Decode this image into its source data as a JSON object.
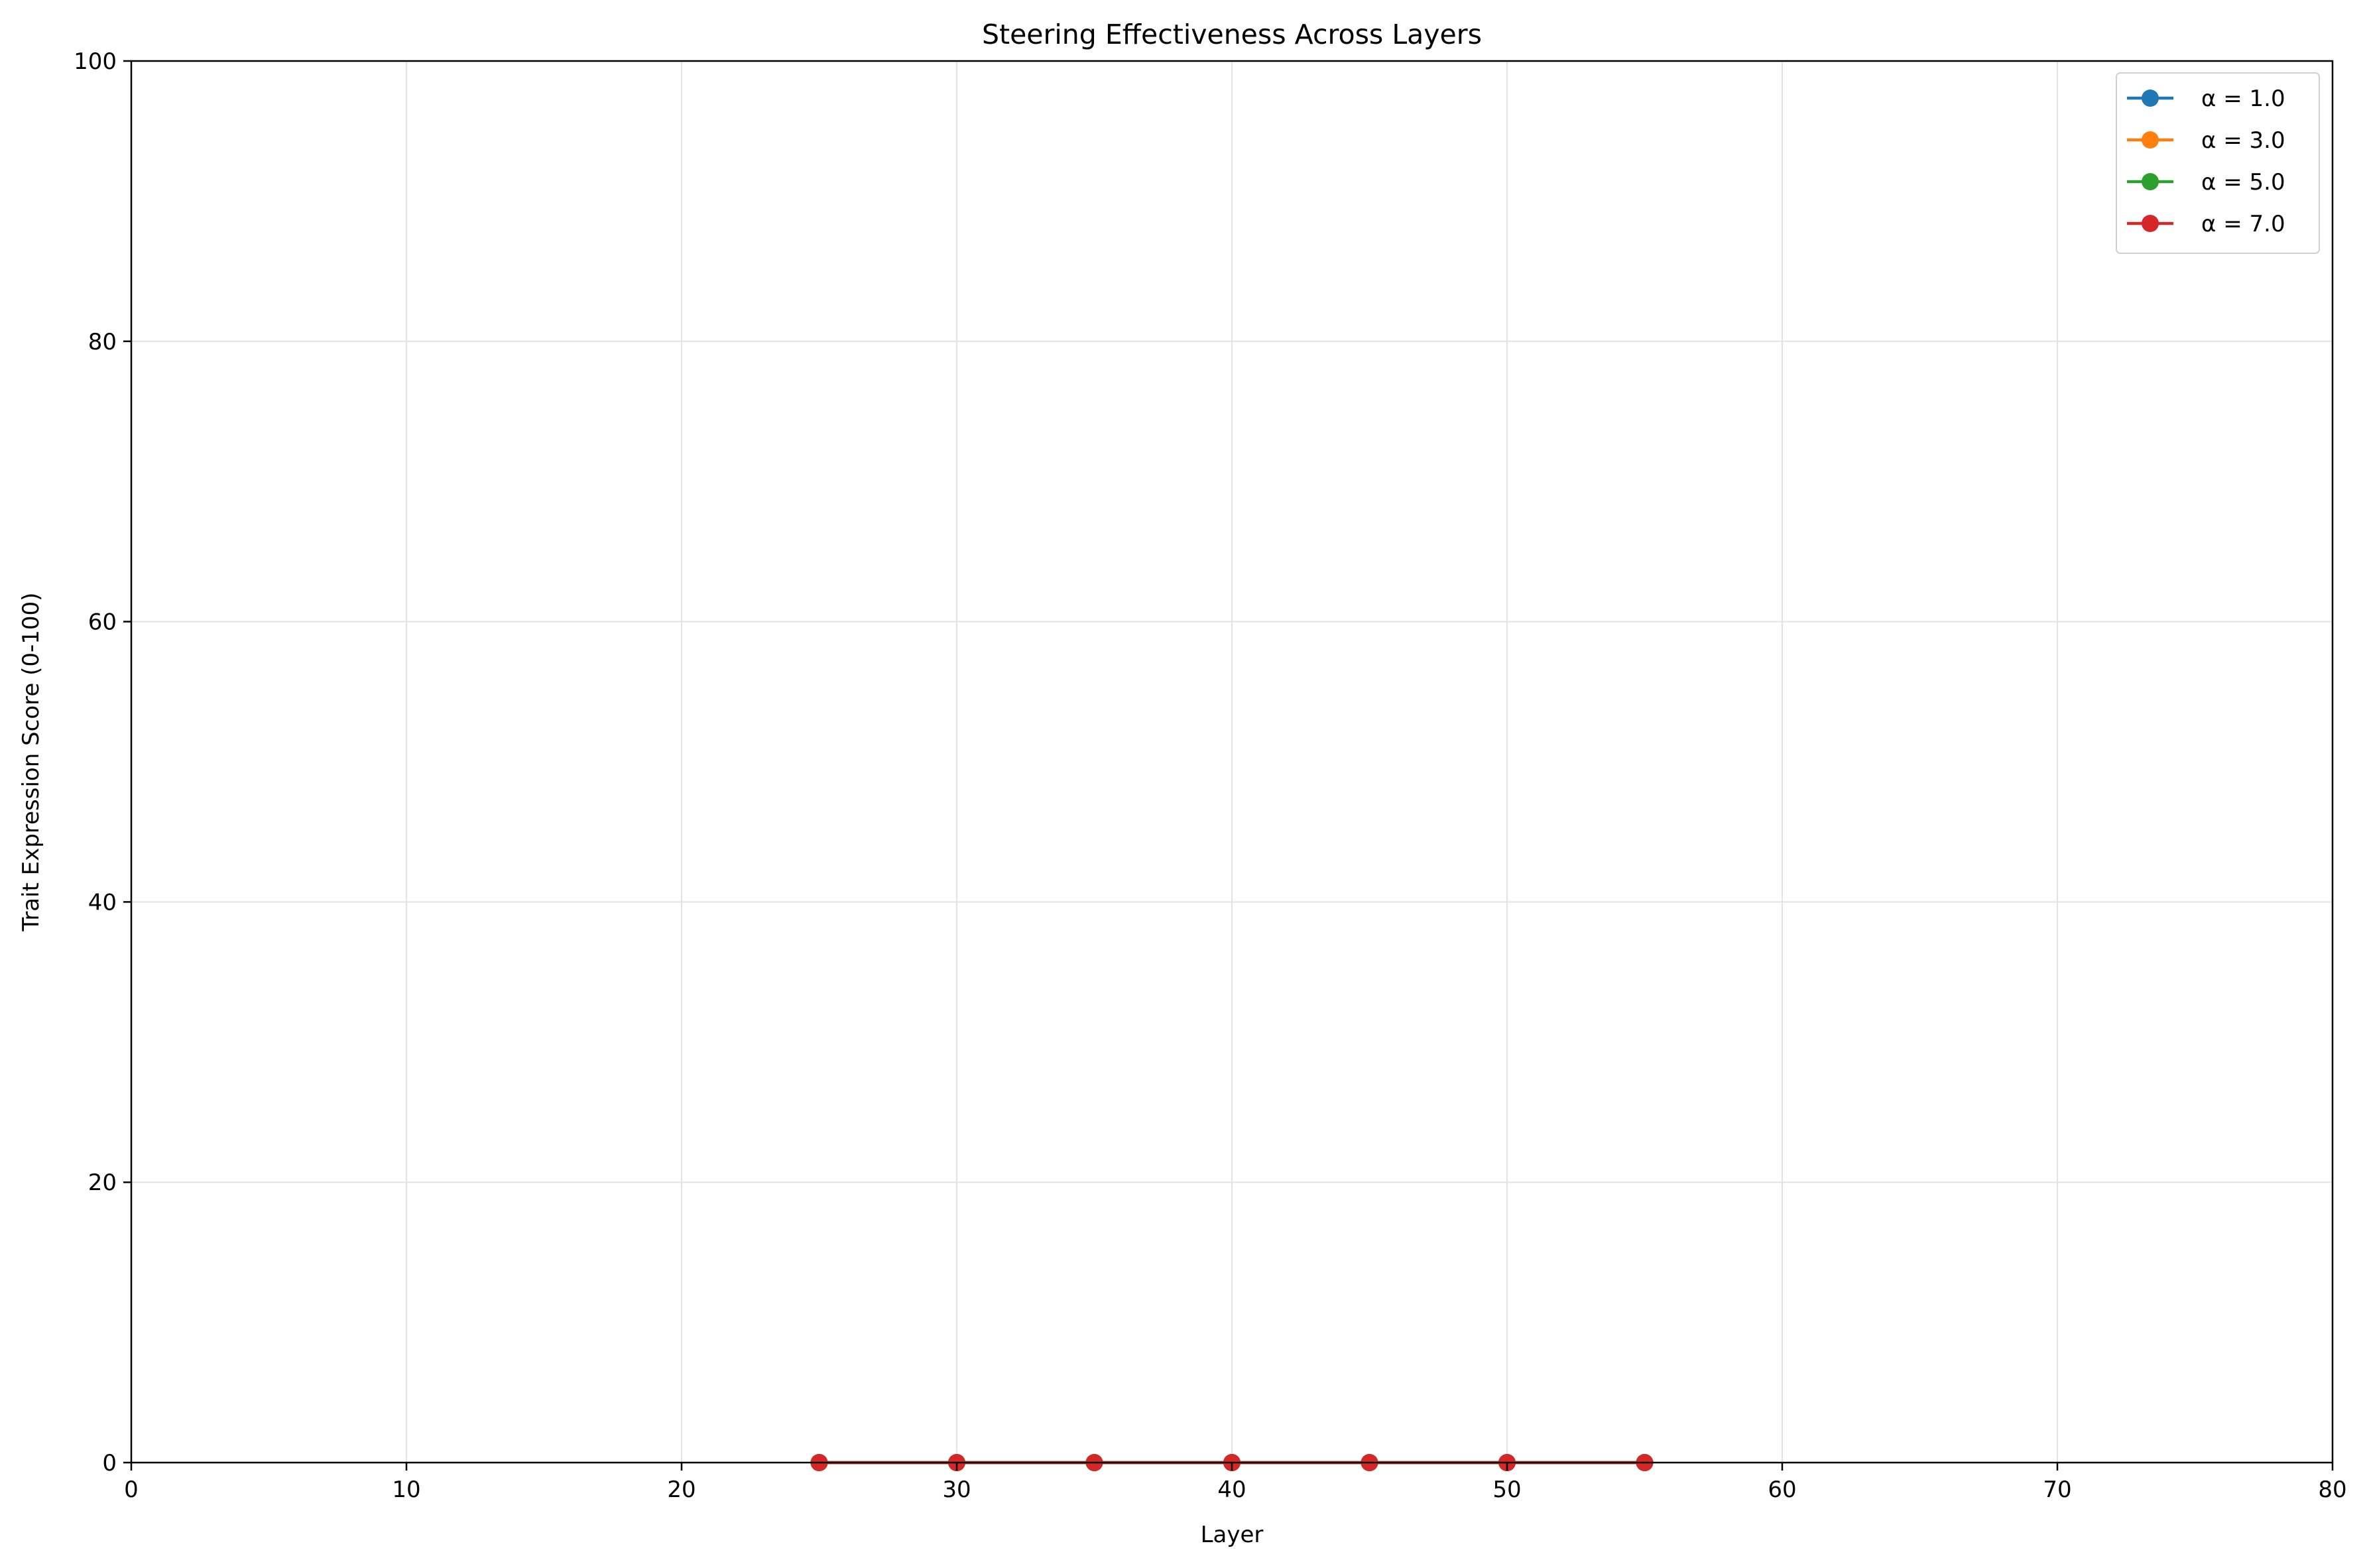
{
  "chart_data": {
    "type": "line",
    "title": "Steering Effectiveness Across Layers",
    "xlabel": "Layer",
    "ylabel": "Trait Expression Score (0-100)",
    "xlim": [
      0,
      80
    ],
    "ylim": [
      0,
      100
    ],
    "xticks": [
      0,
      10,
      20,
      30,
      40,
      50,
      60,
      70,
      80
    ],
    "yticks": [
      0,
      20,
      40,
      60,
      80,
      100
    ],
    "grid": true,
    "legend_position": "top-right",
    "x": [
      25,
      30,
      35,
      40,
      45,
      50,
      55
    ],
    "series": [
      {
        "name": "α = 1.0",
        "color": "#1f77b4",
        "values": [
          0,
          0,
          0,
          0,
          0,
          0,
          0
        ]
      },
      {
        "name": "α = 3.0",
        "color": "#ff7f0e",
        "values": [
          0,
          0,
          0,
          0,
          0,
          0,
          0
        ]
      },
      {
        "name": "α = 5.0",
        "color": "#2ca02c",
        "values": [
          0,
          0,
          0,
          0,
          0,
          0,
          0
        ]
      },
      {
        "name": "α = 7.0",
        "color": "#d62728",
        "values": [
          0,
          0,
          0,
          0,
          0,
          0,
          0
        ]
      }
    ]
  }
}
